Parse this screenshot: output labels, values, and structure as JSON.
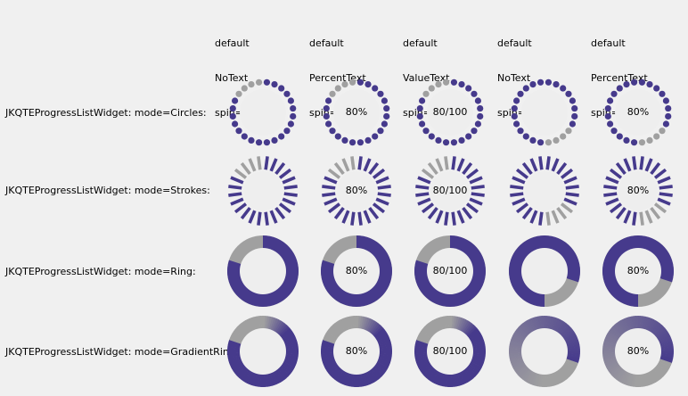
{
  "columns": [
    {
      "lines": [
        "default",
        "NoText",
        "spin=false"
      ]
    },
    {
      "lines": [
        "default",
        "PercentText",
        "spin=false"
      ]
    },
    {
      "lines": [
        "default",
        "ValueText",
        "spin=false"
      ]
    },
    {
      "lines": [
        "default",
        "NoText",
        "spin=true"
      ]
    },
    {
      "lines": [
        "default",
        "PercentText",
        "spin=true"
      ]
    }
  ],
  "rows": [
    {
      "label": "JKQTEProgressListWidget: mode=Circles:",
      "mode": "circles"
    },
    {
      "label": "JKQTEProgressListWidget: mode=Strokes:",
      "mode": "strokes"
    },
    {
      "label": "JKQTEProgressListWidget: mode=Ring:",
      "mode": "ring"
    },
    {
      "label": "JKQTEProgressListWidget: mode=GradientRing:",
      "mode": "gradientring"
    }
  ],
  "progress": {
    "value": 80,
    "max": 100,
    "fraction": 0.8
  },
  "texts": [
    "",
    "80%",
    "80/100",
    "",
    "80%"
  ],
  "spin_offsets": [
    0,
    0,
    0,
    0.5,
    0.5
  ],
  "colors": {
    "background": "#f0f0f0",
    "active": "#463a8c",
    "inactive": "#a0a0a0",
    "center": "#eeeeee"
  }
}
